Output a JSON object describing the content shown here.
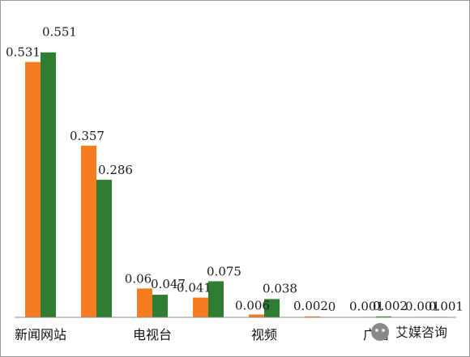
{
  "chart_data": {
    "type": "bar",
    "categories": [
      "新闻网站",
      "",
      "电视台",
      "",
      "视频",
      "",
      "广播",
      ""
    ],
    "series": [
      {
        "values": [
          0.531,
          0.357,
          0.06,
          0.041,
          0.006,
          0.002,
          0.001,
          0.001
        ]
      },
      {
        "values": [
          0.551,
          0.286,
          0.047,
          0.075,
          0.038,
          0,
          0.002,
          0.001
        ]
      }
    ],
    "value_labels": [
      [
        "0.531",
        "0.357",
        "0.06",
        "0.041",
        "0.006",
        "0.002",
        "0.001",
        "0.001"
      ],
      [
        "0.551",
        "0.286",
        "0.047",
        "0.075",
        "0.038",
        "0",
        "0.002",
        "0.001"
      ]
    ],
    "ylim": [
      0,
      0.6
    ],
    "grid": false,
    "colors": [
      "#f57c20",
      "#2e7d32"
    ]
  },
  "watermark": {
    "text": "艾媒咨询"
  }
}
